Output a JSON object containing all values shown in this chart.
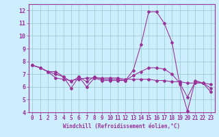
{
  "title": "",
  "xlabel": "Windchill (Refroidissement éolien,°C)",
  "ylabel": "",
  "bg_color": "#cceeff",
  "grid_color": "#aaddcc",
  "line_color": "#993399",
  "xlim": [
    -0.5,
    23.5
  ],
  "ylim": [
    4,
    12.5
  ],
  "xticks": [
    0,
    1,
    2,
    3,
    4,
    5,
    6,
    7,
    8,
    9,
    10,
    11,
    12,
    13,
    14,
    15,
    16,
    17,
    18,
    19,
    20,
    21,
    22,
    23
  ],
  "yticks": [
    4,
    5,
    6,
    7,
    8,
    9,
    10,
    11,
    12
  ],
  "series": [
    [
      7.7,
      7.5,
      7.2,
      7.2,
      6.8,
      5.9,
      6.8,
      6.0,
      6.7,
      6.5,
      6.5,
      6.5,
      6.5,
      7.3,
      9.3,
      11.9,
      11.9,
      11.0,
      9.5,
      6.2,
      4.1,
      6.5,
      6.3,
      5.6
    ],
    [
      7.7,
      7.5,
      7.2,
      6.7,
      6.6,
      6.5,
      6.6,
      6.7,
      6.7,
      6.7,
      6.7,
      6.7,
      6.6,
      6.6,
      6.6,
      6.6,
      6.5,
      6.5,
      6.4,
      6.4,
      6.3,
      6.3,
      6.3,
      6.2
    ],
    [
      7.7,
      7.5,
      7.2,
      7.0,
      6.8,
      6.4,
      6.8,
      6.4,
      6.8,
      6.6,
      6.6,
      6.6,
      6.5,
      6.9,
      7.2,
      7.5,
      7.5,
      7.4,
      7.0,
      6.3,
      5.2,
      6.4,
      6.3,
      5.9
    ]
  ]
}
